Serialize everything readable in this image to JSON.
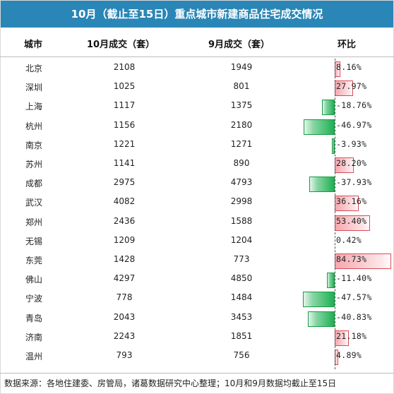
{
  "title": "10月（截止至15日）重点城市新建商品住宅成交情况",
  "headers": {
    "city": "城市",
    "oct": "10月成交（套）",
    "sep": "9月成交（套）",
    "mom": "环比"
  },
  "footer": "数据来源：各地住建委、房管局，诸葛数据研究中心整理；10月和9月数据均截止至15日",
  "colors": {
    "title_bg": "#2a86b6",
    "positive": "#e8737c",
    "negative": "#1eb053"
  },
  "chart_data": {
    "type": "table",
    "columns": [
      "城市",
      "10月成交（套）",
      "9月成交（套）",
      "环比"
    ],
    "rows": [
      {
        "city": "北京",
        "oct": 2108,
        "sep": 1949,
        "mom": 8.16,
        "mom_label": "8.16%"
      },
      {
        "city": "深圳",
        "oct": 1025,
        "sep": 801,
        "mom": 27.97,
        "mom_label": "27.97%"
      },
      {
        "city": "上海",
        "oct": 1117,
        "sep": 1375,
        "mom": -18.76,
        "mom_label": "-18.76%"
      },
      {
        "city": "杭州",
        "oct": 1156,
        "sep": 2180,
        "mom": -46.97,
        "mom_label": "-46.97%"
      },
      {
        "city": "南京",
        "oct": 1221,
        "sep": 1271,
        "mom": -3.93,
        "mom_label": "-3.93%"
      },
      {
        "city": "苏州",
        "oct": 1141,
        "sep": 890,
        "mom": 28.2,
        "mom_label": "28.20%"
      },
      {
        "city": "成都",
        "oct": 2975,
        "sep": 4793,
        "mom": -37.93,
        "mom_label": "-37.93%"
      },
      {
        "city": "武汉",
        "oct": 4082,
        "sep": 2998,
        "mom": 36.16,
        "mom_label": "36.16%"
      },
      {
        "city": "郑州",
        "oct": 2436,
        "sep": 1588,
        "mom": 53.4,
        "mom_label": "53.40%"
      },
      {
        "city": "无锡",
        "oct": 1209,
        "sep": 1204,
        "mom": 0.42,
        "mom_label": "0.42%"
      },
      {
        "city": "东莞",
        "oct": 1428,
        "sep": 773,
        "mom": 84.73,
        "mom_label": "84.73%"
      },
      {
        "city": "佛山",
        "oct": 4297,
        "sep": 4850,
        "mom": -11.4,
        "mom_label": "-11.40%"
      },
      {
        "city": "宁波",
        "oct": 778,
        "sep": 1484,
        "mom": -47.57,
        "mom_label": "-47.57%"
      },
      {
        "city": "青岛",
        "oct": 2043,
        "sep": 3453,
        "mom": -40.83,
        "mom_label": "-40.83%"
      },
      {
        "city": "济南",
        "oct": 2243,
        "sep": 1851,
        "mom": 21.18,
        "mom_label": "21.18%"
      },
      {
        "city": "温州",
        "oct": 793,
        "sep": 756,
        "mom": 4.89,
        "mom_label": "4.89%"
      }
    ]
  }
}
